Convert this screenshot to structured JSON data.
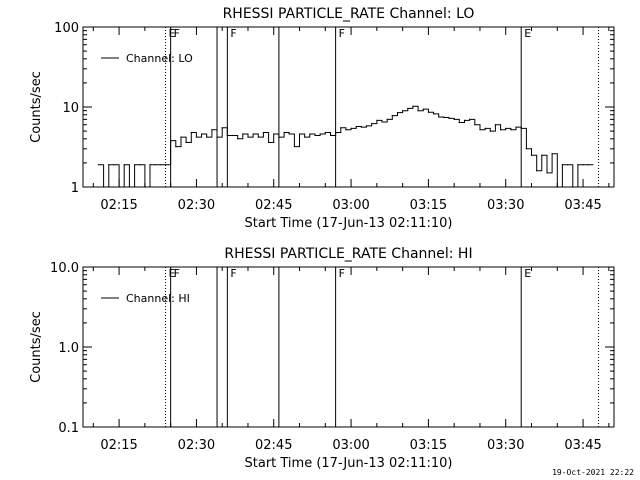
{
  "chart_data": [
    {
      "type": "line",
      "title": "RHESSI PARTICLE_RATE Channel: LO",
      "xlabel": "Start Time (17-Jun-13 02:11:10)",
      "ylabel": "Counts/sec",
      "yscale": "log",
      "ylim": [
        1,
        100
      ],
      "xlim": [
        "02:08",
        "03:51"
      ],
      "ytick_labels": [
        "1",
        "10",
        "100"
      ],
      "yticks": [
        1,
        10,
        100
      ],
      "xtick_labels": [
        "02:15",
        "02:30",
        "02:45",
        "03:00",
        "03:15",
        "03:30",
        "03:45"
      ],
      "xticks": [
        "02:15",
        "02:30",
        "02:45",
        "03:00",
        "03:15",
        "03:30",
        "03:45"
      ],
      "legend": {
        "position": "top-left",
        "entries": [
          "Channel: LO"
        ]
      },
      "grid": false,
      "markers": [
        {
          "time": "02:24",
          "label": "E",
          "style": "dotted"
        },
        {
          "time": "02:25",
          "label": "F",
          "style": "solid"
        },
        {
          "time": "02:34",
          "label": "",
          "style": "solid"
        },
        {
          "time": "02:36",
          "label": "F",
          "style": "solid"
        },
        {
          "time": "02:46",
          "label": "",
          "style": "solid"
        },
        {
          "time": "02:57",
          "label": "F",
          "style": "solid"
        },
        {
          "time": "03:33",
          "label": "E",
          "style": "solid"
        },
        {
          "time": "03:48",
          "label": "",
          "style": "dotted"
        }
      ],
      "series": [
        {
          "name": "Channel: LO",
          "x": [
            "02:11",
            "02:12",
            "02:13",
            "02:14",
            "02:15",
            "02:16",
            "02:17",
            "02:18",
            "02:19",
            "02:20",
            "02:21",
            "02:22",
            "02:23",
            "02:24",
            "02:25",
            "02:26",
            "02:27",
            "02:28",
            "02:29",
            "02:30",
            "02:31",
            "02:32",
            "02:33",
            "02:34",
            "02:35",
            "02:36",
            "02:37",
            "02:38",
            "02:39",
            "02:40",
            "02:41",
            "02:42",
            "02:43",
            "02:44",
            "02:45",
            "02:46",
            "02:47",
            "02:48",
            "02:49",
            "02:50",
            "02:51",
            "02:52",
            "02:53",
            "02:54",
            "02:55",
            "02:56",
            "02:57",
            "02:58",
            "02:59",
            "03:00",
            "03:01",
            "03:02",
            "03:03",
            "03:04",
            "03:05",
            "03:06",
            "03:07",
            "03:08",
            "03:09",
            "03:10",
            "03:11",
            "03:12",
            "03:13",
            "03:14",
            "03:15",
            "03:16",
            "03:17",
            "03:18",
            "03:19",
            "03:20",
            "03:21",
            "03:22",
            "03:23",
            "03:24",
            "03:25",
            "03:26",
            "03:27",
            "03:28",
            "03:29",
            "03:30",
            "03:31",
            "03:32",
            "03:33",
            "03:34",
            "03:35",
            "03:36",
            "03:37",
            "03:38",
            "03:39",
            "03:40",
            "03:41",
            "03:42",
            "03:43",
            "03:44",
            "03:45",
            "03:46"
          ],
          "values": [
            1.9,
            1,
            1.9,
            1.9,
            1,
            1.9,
            1,
            1.9,
            1.9,
            1,
            1.9,
            1.9,
            1.9,
            1.9,
            3.8,
            3.2,
            4.2,
            3.6,
            4.8,
            4.2,
            4.6,
            4.2,
            5.2,
            4.2,
            5.5,
            4.4,
            4.4,
            4.0,
            4.6,
            4.2,
            4.6,
            4.2,
            4.8,
            3.6,
            4.6,
            4.2,
            4.8,
            4.6,
            3.2,
            4.6,
            4.2,
            4.6,
            4.4,
            4.6,
            4.8,
            4.4,
            4.8,
            5.5,
            5.2,
            5.4,
            5.7,
            5.6,
            5.8,
            6.2,
            6.8,
            6.5,
            7.0,
            7.8,
            8.5,
            9.0,
            9.6,
            10.2,
            9.0,
            9.4,
            8.6,
            8.2,
            7.5,
            7.4,
            7.2,
            7.0,
            6.4,
            6.8,
            7.0,
            6.0,
            5.2,
            5.4,
            5.0,
            6.0,
            5.2,
            5.4,
            5.2,
            5.6,
            5.4,
            3.0,
            2.5,
            1.6,
            2.5,
            1.5,
            2.6,
            1,
            1.9,
            1.9,
            1,
            1.9,
            1.9,
            1.9
          ]
        }
      ]
    },
    {
      "type": "line",
      "title": "RHESSI PARTICLE_RATE Channel: HI",
      "xlabel": "Start Time (17-Jun-13 02:11:10)",
      "ylabel": "Counts/sec",
      "yscale": "log",
      "ylim": [
        0.1,
        10
      ],
      "xlim": [
        "02:08",
        "03:51"
      ],
      "ytick_labels": [
        "0.1",
        "1.0",
        "10.0"
      ],
      "yticks": [
        0.1,
        1,
        10
      ],
      "xtick_labels": [
        "02:15",
        "02:30",
        "02:45",
        "03:00",
        "03:15",
        "03:30",
        "03:45"
      ],
      "xticks": [
        "02:15",
        "02:30",
        "02:45",
        "03:00",
        "03:15",
        "03:30",
        "03:45"
      ],
      "legend": {
        "position": "top-left",
        "entries": [
          "Channel: HI"
        ]
      },
      "grid": false,
      "markers": [
        {
          "time": "02:24",
          "label": "E",
          "style": "dotted"
        },
        {
          "time": "02:25",
          "label": "F",
          "style": "solid"
        },
        {
          "time": "02:34",
          "label": "",
          "style": "solid"
        },
        {
          "time": "02:36",
          "label": "F",
          "style": "solid"
        },
        {
          "time": "02:46",
          "label": "",
          "style": "solid"
        },
        {
          "time": "02:57",
          "label": "F",
          "style": "solid"
        },
        {
          "time": "03:33",
          "label": "E",
          "style": "solid"
        },
        {
          "time": "03:48",
          "label": "",
          "style": "dotted"
        }
      ],
      "series": [
        {
          "name": "Channel: HI",
          "x": [],
          "values": []
        }
      ]
    }
  ],
  "footer": {
    "timestamp": "19-Oct-2021 22:22"
  },
  "colors": {
    "background": "#ffffff",
    "ink": "#000000"
  }
}
